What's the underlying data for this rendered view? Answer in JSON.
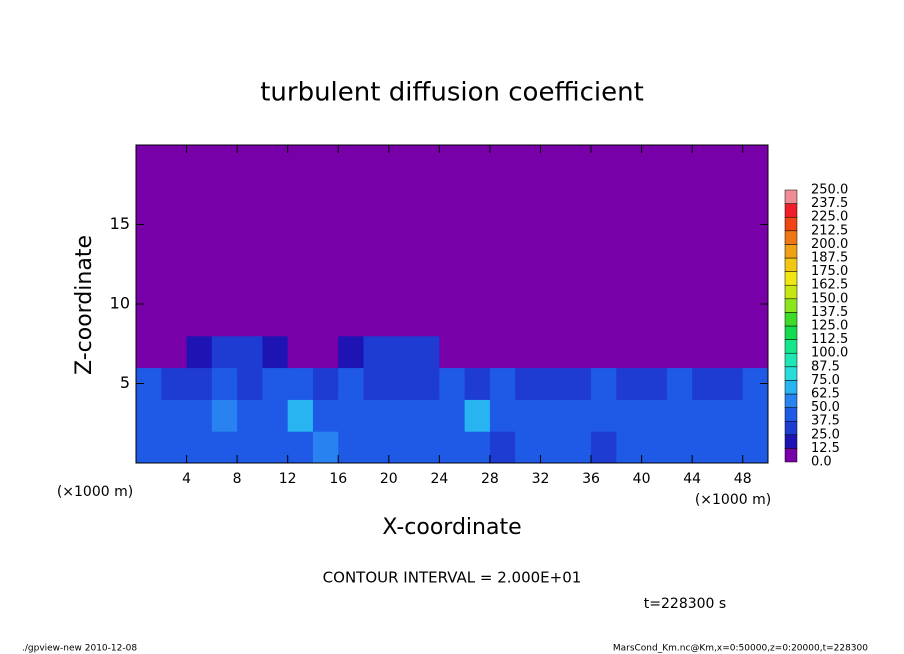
{
  "chart_data": {
    "type": "heatmap",
    "title": "turbulent diffusion coefficient",
    "xlabel": "X-coordinate",
    "ylabel": "Z-coordinate",
    "x_unit": "(×1000 m)",
    "xlim": [
      0,
      50
    ],
    "ylim": [
      0,
      20
    ],
    "xticks": [
      4,
      8,
      12,
      16,
      20,
      24,
      28,
      32,
      36,
      40,
      44,
      48
    ],
    "yticks": [
      5,
      10,
      15
    ],
    "x": [
      1,
      3,
      5,
      7,
      9,
      11,
      13,
      15,
      17,
      19,
      21,
      23,
      25,
      27,
      29,
      31,
      33,
      35,
      37,
      39,
      41,
      43,
      45,
      47,
      49
    ],
    "y": [
      1,
      3,
      5,
      7,
      9,
      11,
      13,
      15,
      17,
      19
    ],
    "values": [
      [
        45,
        40,
        38,
        45,
        42,
        38,
        40,
        55,
        40,
        38,
        42,
        40,
        45,
        40,
        35,
        40,
        38,
        42,
        35,
        40,
        45,
        40,
        38,
        40,
        42
      ],
      [
        40,
        38,
        40,
        55,
        42,
        38,
        70,
        45,
        40,
        38,
        42,
        40,
        45,
        65,
        40,
        38,
        42,
        40,
        45,
        40,
        38,
        42,
        40,
        38,
        45
      ],
      [
        45,
        30,
        35,
        38,
        32,
        40,
        42,
        35,
        40,
        30,
        32,
        35,
        40,
        30,
        38,
        35,
        28,
        32,
        40,
        35,
        30,
        38,
        32,
        35,
        40
      ],
      [
        10,
        5,
        20,
        25,
        30,
        15,
        5,
        12,
        20,
        25,
        30,
        28,
        10,
        5,
        5,
        8,
        5,
        5,
        5,
        5,
        3,
        5,
        5,
        5,
        8
      ],
      [
        0,
        0,
        0,
        0,
        0,
        0,
        0,
        0,
        0,
        0,
        5,
        0,
        0,
        0,
        0,
        0,
        0,
        0,
        0,
        0,
        0,
        0,
        0,
        0,
        0
      ],
      [
        0,
        0,
        0,
        0,
        0,
        0,
        0,
        0,
        0,
        0,
        0,
        0,
        0,
        0,
        0,
        0,
        0,
        0,
        0,
        0,
        0,
        0,
        0,
        0,
        0
      ],
      [
        0,
        0,
        0,
        0,
        0,
        0,
        0,
        0,
        0,
        0,
        0,
        0,
        0,
        0,
        0,
        0,
        0,
        0,
        0,
        0,
        0,
        0,
        0,
        0,
        0
      ],
      [
        0,
        0,
        0,
        0,
        0,
        0,
        0,
        0,
        0,
        0,
        0,
        0,
        0,
        0,
        0,
        0,
        0,
        0,
        0,
        0,
        0,
        0,
        0,
        0,
        0
      ],
      [
        0,
        0,
        0,
        0,
        0,
        0,
        0,
        0,
        0,
        0,
        0,
        0,
        0,
        0,
        0,
        0,
        0,
        0,
        0,
        0,
        0,
        0,
        0,
        0,
        0
      ],
      [
        0,
        0,
        0,
        0,
        0,
        0,
        0,
        0,
        0,
        0,
        0,
        0,
        0,
        0,
        0,
        0,
        0,
        0,
        0,
        0,
        0,
        0,
        0,
        0,
        0
      ]
    ],
    "colorbar": {
      "levels": [
        {
          "value": 0,
          "label": "0.0"
        },
        {
          "value": 12.5,
          "label": "12.5"
        },
        {
          "value": 25,
          "label": "25.0"
        },
        {
          "value": 37.5,
          "label": "37.5"
        },
        {
          "value": 50,
          "label": "50.0"
        },
        {
          "value": 62.5,
          "label": "62.5"
        },
        {
          "value": 75,
          "label": "75.0"
        },
        {
          "value": 87.5,
          "label": "87.5"
        },
        {
          "value": 100,
          "label": "100.0"
        },
        {
          "value": 112.5,
          "label": "112.5"
        },
        {
          "value": 125,
          "label": "125.0"
        },
        {
          "value": 137.5,
          "label": "137.5"
        },
        {
          "value": 150,
          "label": "150.0"
        },
        {
          "value": 162.5,
          "label": "162.5"
        },
        {
          "value": 175,
          "label": "175.0"
        },
        {
          "value": 187.5,
          "label": "187.5"
        },
        {
          "value": 200,
          "label": "200.0"
        },
        {
          "value": 212.5,
          "label": "212.5"
        },
        {
          "value": 225,
          "label": "225.0"
        },
        {
          "value": 237.5,
          "label": "237.5"
        },
        {
          "value": 250,
          "label": "250.0"
        }
      ],
      "colors": [
        "#7800a8",
        "#1e14b4",
        "#1e3cd2",
        "#1e5ae6",
        "#2882f0",
        "#28b4f0",
        "#28dcdc",
        "#1ee6b4",
        "#14e68c",
        "#14dc50",
        "#3cdc28",
        "#8ce61e",
        "#c8e614",
        "#f0e614",
        "#f0c814",
        "#f0a014",
        "#f07814",
        "#f04614",
        "#f01e28",
        "#f08c96"
      ]
    },
    "annotation": "CONTOUR INTERVAL = 2.000E+01",
    "time_label": "t=228300 s",
    "footer_left": "./gpview-new  2010-12-08",
    "footer_right": "MarsCond_Km.nc@Km,x=0:50000,z=0:20000,t=228300"
  }
}
